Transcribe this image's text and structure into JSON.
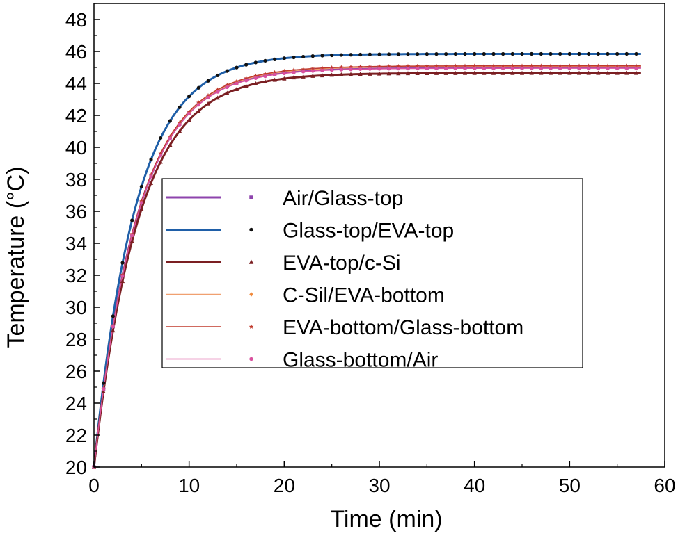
{
  "chart_data": {
    "type": "line",
    "title": "",
    "xlabel": "Time (min)",
    "ylabel": "Temperature (°C)",
    "xlim": [
      0,
      60
    ],
    "ylim": [
      20,
      49
    ],
    "x_ticks": [
      0,
      10,
      20,
      30,
      40,
      50,
      60
    ],
    "y_ticks": [
      20,
      22,
      24,
      26,
      28,
      30,
      32,
      34,
      36,
      38,
      40,
      42,
      44,
      46,
      48
    ],
    "legend_position": "center",
    "series": [
      {
        "name": "Air/Glass-top",
        "model": "exponential",
        "start": 20,
        "plateau": 45.0,
        "tau_min": 4.6,
        "t_end": 57.5,
        "line_color": "#8e44ad",
        "line_width": 3,
        "marker": "square",
        "marker_color": "#8e44ad"
      },
      {
        "name": "Glass-top/EVA-top",
        "model": "exponential",
        "start": 20,
        "plateau": 45.85,
        "tau_min": 4.4,
        "t_end": 57.5,
        "line_color": "#1f5fa8",
        "line_width": 3,
        "marker": "circle",
        "marker_color": "#111111"
      },
      {
        "name": "EVA-top/c-Si",
        "model": "exponential",
        "start": 20,
        "plateau": 44.65,
        "tau_min": 4.7,
        "t_end": 57.5,
        "line_color": "#7b1f22",
        "line_width": 3,
        "marker": "triangle",
        "marker_color": "#7b1f22"
      },
      {
        "name": "C-Sil/EVA-bottom",
        "model": "exponential",
        "start": 20,
        "plateau": 45.05,
        "tau_min": 4.6,
        "t_end": 57.5,
        "line_color": "#f0a070",
        "line_width": 1.5,
        "marker": "diamond",
        "marker_color": "#f08a3c"
      },
      {
        "name": "EVA-bottom/Glass-bottom",
        "model": "exponential",
        "start": 20,
        "plateau": 45.1,
        "tau_min": 4.6,
        "t_end": 57.5,
        "line_color": "#c0392b",
        "line_width": 1.5,
        "marker": "star",
        "marker_color": "#c0392b"
      },
      {
        "name": "Glass-bottom/Air",
        "model": "exponential",
        "start": 20,
        "plateau": 44.95,
        "tau_min": 4.6,
        "t_end": 57.5,
        "line_color": "#d9519e",
        "line_width": 1.5,
        "marker": "circle",
        "marker_color": "#d9519e"
      }
    ]
  }
}
